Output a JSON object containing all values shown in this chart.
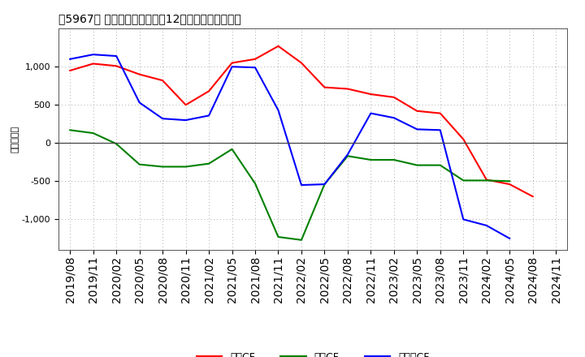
{
  "title": "［5967］ キャッシュフローの12か月移動合計の推移",
  "ylabel": "（百万円）",
  "background_color": "#ffffff",
  "plot_bg_color": "#ffffff",
  "grid_color": "#aaaaaa",
  "xlabels": [
    "2019/08",
    "2019/11",
    "2020/02",
    "2020/05",
    "2020/08",
    "2020/11",
    "2021/02",
    "2021/05",
    "2021/08",
    "2021/11",
    "2022/02",
    "2022/05",
    "2022/08",
    "2022/11",
    "2023/02",
    "2023/05",
    "2023/08",
    "2023/11",
    "2024/02",
    "2024/05",
    "2024/08",
    "2024/11"
  ],
  "operating_cf": [
    950,
    1040,
    1010,
    900,
    820,
    500,
    680,
    1050,
    1100,
    1270,
    1050,
    730,
    710,
    640,
    600,
    420,
    390,
    50,
    -480,
    -540,
    -700,
    null
  ],
  "investing_cf": [
    170,
    130,
    -10,
    -280,
    -310,
    -310,
    -270,
    -80,
    -530,
    -1230,
    -1270,
    -540,
    -170,
    -220,
    -220,
    -290,
    -290,
    -490,
    -490,
    -500,
    null,
    null
  ],
  "free_cf": [
    1100,
    1160,
    1140,
    530,
    320,
    300,
    360,
    1000,
    990,
    430,
    -550,
    -540,
    -150,
    390,
    330,
    180,
    170,
    -1000,
    -1080,
    -1250,
    null,
    null
  ],
  "operating_color": "#ff0000",
  "investing_color": "#008000",
  "free_color": "#0000ff",
  "ylim": [
    -1400,
    1500
  ],
  "yticks": [
    -1000,
    -500,
    0,
    500,
    1000
  ],
  "title_fontsize": 11,
  "legend_labels": [
    "営業CF",
    "投資CF",
    "フリーCF"
  ]
}
